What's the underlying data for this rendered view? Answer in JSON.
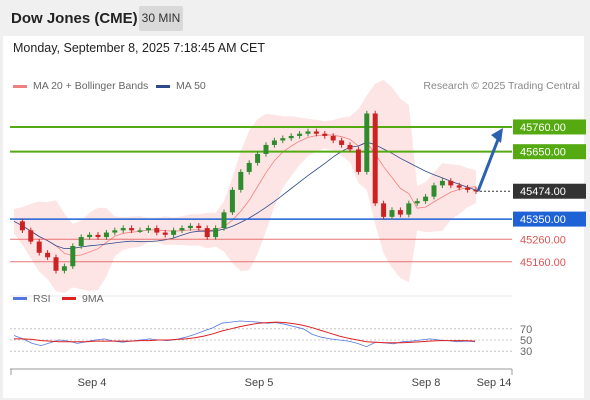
{
  "header": {
    "title": "Dow Jones (CME)",
    "timeframe": "30 MIN"
  },
  "timestamp": "Monday, September 8, 2025 7:18:45 AM CET",
  "legend": {
    "ma20": "MA 20 + Bollinger Bands",
    "ma50": "MA 50",
    "ma20_color": "#f08080",
    "ma50_color": "#2e4a8b"
  },
  "credit": "Research © 2025 Trading Central",
  "colors": {
    "resistance": "#55aa11",
    "support": "#1e62d6",
    "secondary": "#e05555",
    "current": "#333333",
    "arrow": "#2a62b0",
    "rsi": "#5577dd",
    "rsi_ma": "#dd2222",
    "bull": "#2e8b2e",
    "bear": "#cc2222"
  },
  "chart_data": [
    {
      "type": "candlestick",
      "y_range": [
        45070,
        45880
      ],
      "x_ticks": [
        "Sep 4",
        "Sep 5",
        "Sep 8",
        "Sep 14"
      ],
      "levels": [
        {
          "label": "45760.00",
          "value": 45760,
          "kind": "resistance"
        },
        {
          "label": "45650.00",
          "value": 45650,
          "kind": "resistance"
        },
        {
          "label": "45474.00",
          "value": 45474,
          "kind": "current"
        },
        {
          "label": "45350.00",
          "value": 45350,
          "kind": "support"
        },
        {
          "label": "45260.00",
          "value": 45260,
          "kind": "secondary"
        },
        {
          "label": "45160.00",
          "value": 45160,
          "kind": "secondary"
        }
      ],
      "price_path": [
        45340,
        45300,
        45250,
        45200,
        45180,
        45120,
        45140,
        45230,
        45270,
        45280,
        45270,
        45290,
        45300,
        45310,
        45300,
        45300,
        45310,
        45290,
        45280,
        45300,
        45310,
        45320,
        45310,
        45270,
        45310,
        45380,
        45480,
        45560,
        45600,
        45640,
        45680,
        45700,
        45710,
        45720,
        45730,
        45740,
        45730,
        45720,
        45700,
        45680,
        45660,
        45560,
        45820,
        45420,
        45360,
        45390,
        45370,
        45420,
        45430,
        45450,
        45500,
        45520,
        45500,
        45490,
        45480,
        45474
      ],
      "forecast_target": 45760
    },
    {
      "type": "line",
      "title": "RSI",
      "y_ticks": [
        70,
        50,
        30
      ],
      "series": [
        {
          "name": "RSI",
          "values": [
            58,
            52,
            44,
            40,
            45,
            50,
            48,
            44,
            47,
            50,
            52,
            48,
            46,
            48,
            50,
            52,
            50,
            49,
            51,
            55,
            60,
            66,
            72,
            80,
            82,
            84,
            83,
            82,
            80,
            81,
            78,
            74,
            70,
            60,
            55,
            52,
            50,
            48,
            44,
            38,
            46,
            45,
            43,
            47,
            48,
            50,
            52,
            50,
            49,
            47,
            48,
            47
          ]
        },
        {
          "name": "9MA",
          "values": [
            52,
            52,
            51,
            49,
            48,
            47,
            47,
            47,
            47,
            48,
            48,
            48,
            48,
            48,
            49,
            49,
            50,
            50,
            51,
            52,
            54,
            57,
            61,
            66,
            70,
            74,
            77,
            80,
            81,
            82,
            81,
            79,
            76,
            72,
            67,
            62,
            57,
            53,
            50,
            47,
            46,
            45,
            45,
            45,
            46,
            47,
            48,
            49,
            49,
            49,
            49,
            48
          ]
        }
      ]
    }
  ]
}
